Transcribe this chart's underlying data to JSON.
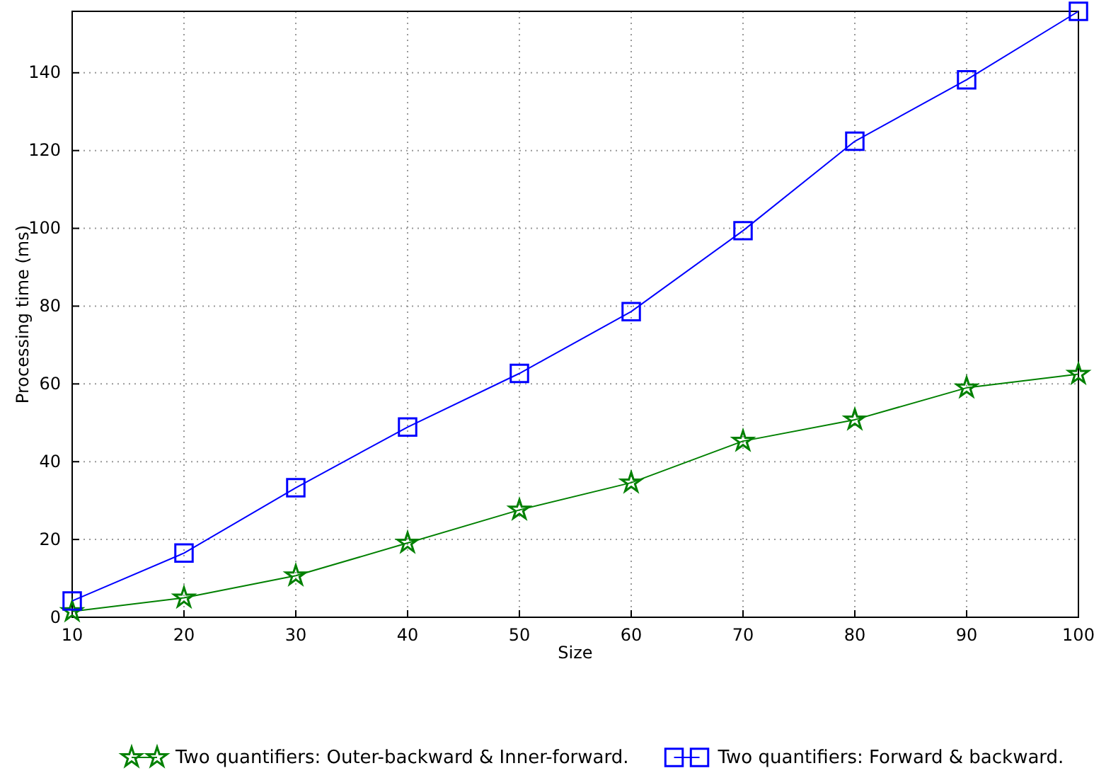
{
  "chart_data": {
    "type": "line",
    "xlabel": "Size",
    "ylabel": "Processing time (ms)",
    "x": [
      10,
      20,
      30,
      40,
      50,
      60,
      70,
      80,
      90,
      100
    ],
    "xlim": [
      10,
      100
    ],
    "xticks": [
      10,
      20,
      30,
      40,
      50,
      60,
      70,
      80,
      90,
      100
    ],
    "ylim": [
      0,
      155.8
    ],
    "yticks": [
      0,
      20,
      40,
      60,
      80,
      100,
      120,
      140
    ],
    "grid": true,
    "legend": "bottom",
    "line_style": "solid",
    "series": [
      {
        "name": "Two quantifiers: Outer-backward & Inner-forward.",
        "color": "#008000",
        "marker": "star",
        "values": [
          1.5,
          5.0,
          10.7,
          19.1,
          27.6,
          34.6,
          45.3,
          50.8,
          59.0,
          62.5
        ]
      },
      {
        "name": "Two quantifiers: Forward & backward.",
        "color": "#0000ff",
        "marker": "square",
        "values": [
          4.2,
          16.5,
          33.3,
          48.9,
          62.7,
          78.6,
          99.4,
          122.4,
          138.2,
          155.8
        ]
      }
    ]
  }
}
